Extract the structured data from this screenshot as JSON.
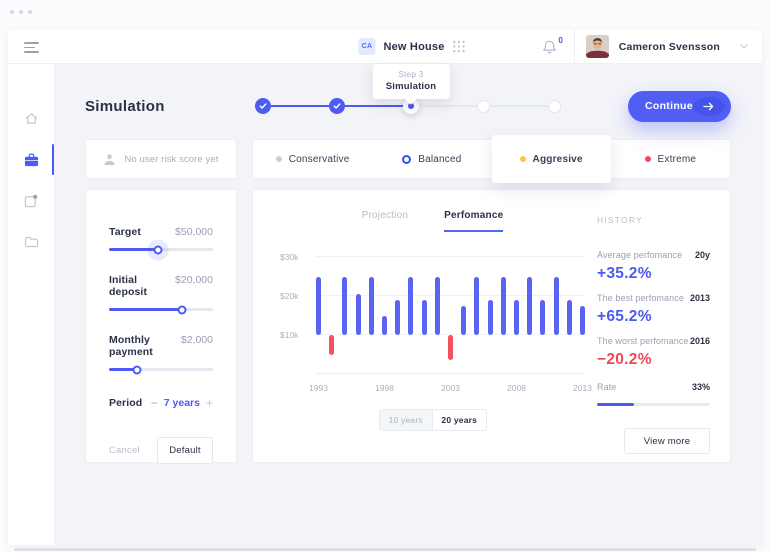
{
  "topbar": {
    "workspace_badge": "CA",
    "workspace_name": "New House",
    "notification_count": "0",
    "user_name": "Cameron Svensson"
  },
  "tooltip": {
    "step": "Step 3",
    "label": "Simulation"
  },
  "page": {
    "title": "Simulation",
    "continue_label": "Continue"
  },
  "stepper": {
    "steps": [
      {
        "state": "completed"
      },
      {
        "state": "completed"
      },
      {
        "state": "current"
      },
      {
        "state": "upcoming"
      },
      {
        "state": "upcoming"
      }
    ]
  },
  "risk": {
    "empty_label": "No user risk score yet",
    "options": [
      {
        "label": "Conservative",
        "color": "#c9cdd9",
        "icon": "dot",
        "elevated": false
      },
      {
        "label": "Balanced",
        "color": "#2f54eb",
        "icon": "ring",
        "elevated": false
      },
      {
        "label": "Aggresive",
        "color": "#ffc53d",
        "icon": "dot",
        "elevated": true
      },
      {
        "label": "Extreme",
        "color": "#f4485c",
        "icon": "dot",
        "elevated": false
      }
    ]
  },
  "controls": {
    "sliders": [
      {
        "label": "Target",
        "value": "$50,000",
        "percent": 47,
        "halo": true
      },
      {
        "label": "Initial deposit",
        "value": "$20,000",
        "percent": 70,
        "halo": false
      },
      {
        "label": "Monthly payment",
        "value": "$2,000",
        "percent": 27,
        "halo": false
      }
    ],
    "period": {
      "label": "Period",
      "minus": "−",
      "value": "7 years",
      "plus": "+"
    },
    "cancel_label": "Cancel",
    "default_label": "Default"
  },
  "chart_card": {
    "tabs": [
      {
        "label": "Projection",
        "active": false
      },
      {
        "label": "Perfomance",
        "active": true
      }
    ],
    "range_toggle": [
      {
        "label": "10 years",
        "active": false
      },
      {
        "label": "20 years",
        "active": true
      }
    ]
  },
  "chart_data": {
    "type": "bar",
    "title": "Perfomance",
    "x": [
      1993,
      1994,
      1995,
      1996,
      1997,
      1998,
      1999,
      2000,
      2001,
      2002,
      2003,
      2004,
      2005,
      2006,
      2007,
      2008,
      2009,
      2010,
      2011,
      2012,
      2013
    ],
    "values": [
      25,
      5,
      25,
      20.5,
      25,
      15,
      19,
      25,
      19,
      25,
      3.5,
      17.5,
      25,
      19,
      25,
      19,
      25,
      19,
      25,
      19,
      17.5
    ],
    "baseline": 10,
    "unit": "$ thousands",
    "ylim": [
      0,
      32
    ],
    "yticks": [
      {
        "label": "$10k",
        "value": 10
      },
      {
        "label": "$20k",
        "value": 20
      },
      {
        "label": "$30k",
        "value": 30
      }
    ],
    "xticks": [
      1993,
      1998,
      2003,
      2008,
      2013
    ],
    "grid": true,
    "legend": false,
    "bar_color": "#5b64f2",
    "negative_color": "#f4515f"
  },
  "history": {
    "title": "HISTORY",
    "items": [
      {
        "label": "Average perfomance",
        "meta": "20y",
        "value": "+35.2%",
        "color": "#4b5af0"
      },
      {
        "label": "The best perfomance",
        "meta": "2013",
        "value": "+65.2%",
        "color": "#4b5af0"
      },
      {
        "label": "The worst perfomance",
        "meta": "2016",
        "value": "−20.2%",
        "color": "#f0485a"
      }
    ],
    "rate": {
      "label": "Rate",
      "value": "33%",
      "percent": 33
    },
    "view_more_label": "View more"
  },
  "icons": {
    "menu": "hamburger-icon",
    "workspace_apps": "grid-dots-icon",
    "notifications": "bell-icon",
    "user_menu": "chevron-down-icon",
    "sidebar": [
      "home-icon",
      "portfolio-icon",
      "export-icon",
      "folder-icon"
    ],
    "risk_empty": "person-icon",
    "continue": "arrow-right-icon"
  },
  "colors": {
    "accent": "#4d5bf3",
    "positive": "#4b5af0",
    "negative": "#f0485a"
  }
}
